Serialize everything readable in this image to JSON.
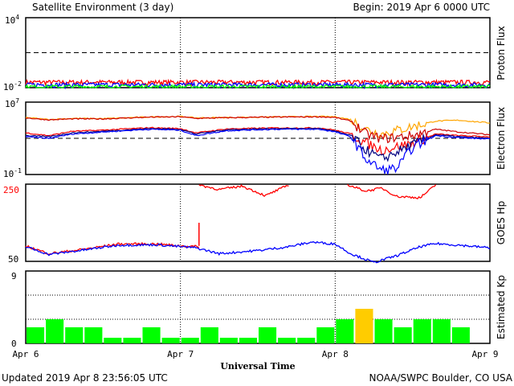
{
  "header": {
    "title": "Satellite Environment (3 day)",
    "begin": "Begin:  2019 Apr 6 0000 UTC"
  },
  "footer": {
    "updated": "Updated 2019 Apr  8 23:56:05 UTC",
    "credit": "NOAA/SWPC Boulder, CO USA"
  },
  "x_axis": {
    "title": "Universal Time",
    "ticks": [
      "Apr 6",
      "Apr 7",
      "Apr 8",
      "Apr 9"
    ]
  },
  "colors": {
    "red": "#ff0000",
    "blue": "#0000ff",
    "green": "#00ff00",
    "orange": "#ffa500",
    "darkred": "#cc0000",
    "navy": "#000080",
    "bar_green": "#00ff00",
    "bar_yellow": "#ffcc00"
  },
  "chart_data": [
    {
      "type": "line",
      "ylabel": "Proton Flux",
      "yscale": "log",
      "ylim": [
        0.01,
        10000
      ],
      "yticks": [
        {
          "base": "10",
          "exp": "4"
        },
        {
          "base": "10",
          "exp": "-2"
        }
      ],
      "xlim_days": [
        0,
        3
      ],
      "threshold": 10,
      "series": [
        {
          "color": "red",
          "level_start": 0.03,
          "level_end": 0.03
        },
        {
          "color": "blue",
          "level_start": 0.018,
          "level_end": 0.018
        },
        {
          "color": "green",
          "level_start": 0.012,
          "level_end": 0.012
        }
      ]
    },
    {
      "type": "line",
      "ylabel": "Electron Flux",
      "yscale": "log",
      "ylim": [
        0.1,
        10000000
      ],
      "yticks": [
        {
          "base": "10",
          "exp": "7"
        },
        {
          "base": "10",
          "exp": "-1"
        }
      ],
      "threshold": 1000,
      "series": [
        {
          "color": "orange",
          "x": [
            0,
            0.15,
            0.3,
            0.5,
            0.8,
            1.0,
            1.1,
            1.3,
            1.6,
            1.9,
            2.0,
            2.1,
            2.2,
            2.3,
            2.5,
            2.65,
            2.8,
            3.0
          ],
          "y": [
            200000,
            120000,
            160000,
            150000,
            230000,
            260000,
            180000,
            200000,
            230000,
            260000,
            240000,
            120000,
            10000,
            3000,
            20000,
            80000,
            100000,
            50000
          ]
        },
        {
          "color": "darkred",
          "x": [
            0,
            0.15,
            0.3,
            0.5,
            0.8,
            1.0,
            1.1,
            1.3,
            1.6,
            1.9,
            2.0,
            2.1,
            2.2,
            2.3,
            2.5,
            2.65,
            2.8,
            3.0
          ],
          "y": [
            180000,
            110000,
            140000,
            140000,
            220000,
            240000,
            160000,
            190000,
            220000,
            240000,
            200000,
            80000,
            3000,
            900,
            2000,
            10000,
            5000,
            2500
          ]
        },
        {
          "color": "red",
          "x": [
            0,
            0.15,
            0.3,
            0.5,
            0.8,
            1.0,
            1.1,
            1.3,
            1.6,
            1.9,
            2.0,
            2.1,
            2.2,
            2.3,
            2.5,
            2.65,
            2.8,
            3.0
          ],
          "y": [
            4000,
            2000,
            6000,
            8000,
            15000,
            12000,
            4000,
            11000,
            14000,
            14000,
            8000,
            3000,
            300,
            50,
            300,
            3000,
            2000,
            1500
          ]
        },
        {
          "color": "navy",
          "x": [
            0,
            0.15,
            0.3,
            0.5,
            0.8,
            1.0,
            1.1,
            1.3,
            1.6,
            1.9,
            2.0,
            2.1,
            2.2,
            2.3,
            2.5,
            2.65,
            2.8,
            3.0
          ],
          "y": [
            2000,
            1500,
            4000,
            6000,
            12000,
            10000,
            3000,
            9000,
            12000,
            12000,
            6000,
            2000,
            50,
            5,
            200,
            2500,
            1500,
            1000
          ]
        },
        {
          "color": "blue",
          "x": [
            0,
            0.15,
            0.3,
            0.5,
            0.8,
            1.0,
            1.1,
            1.3,
            1.6,
            1.9,
            2.0,
            2.1,
            2.2,
            2.3,
            2.4,
            2.5,
            2.65,
            2.8,
            3.0
          ],
          "y": [
            1500,
            1000,
            3000,
            5000,
            10000,
            8000,
            2000,
            7000,
            10000,
            10000,
            5000,
            1500,
            5,
            0.3,
            0.5,
            100,
            2000,
            1200,
            800
          ]
        }
      ]
    },
    {
      "type": "line",
      "ylabel": "GOES Hp",
      "ylim": [
        50,
        250
      ],
      "yticks": [
        "250",
        "50"
      ],
      "series": [
        {
          "color": "red",
          "x": [
            0,
            0.15,
            0.35,
            0.6,
            0.85,
            1.0,
            1.12
          ],
          "y": [
            90,
            70,
            80,
            95,
            95,
            90,
            88
          ],
          "spike": {
            "x": 1.12,
            "y": 150
          }
        },
        {
          "color": "red",
          "x": [
            1.12,
            1.25,
            1.4,
            1.55,
            1.7
          ],
          "y": [
            248,
            236,
            245,
            220,
            248
          ]
        },
        {
          "color": "red",
          "x": [
            2.08,
            2.2,
            2.3,
            2.4,
            2.55,
            2.65
          ],
          "y": [
            248,
            232,
            240,
            218,
            215,
            248
          ]
        },
        {
          "color": "blue",
          "x": [
            0,
            0.15,
            0.35,
            0.6,
            0.85,
            1.0,
            1.1,
            1.25,
            1.5,
            1.7,
            1.85,
            2.0,
            2.1,
            2.25,
            2.4,
            2.55,
            2.65,
            2.8,
            3.0
          ],
          "y": [
            88,
            68,
            78,
            92,
            93,
            88,
            85,
            70,
            78,
            88,
            100,
            95,
            70,
            47,
            65,
            88,
            96,
            92,
            85
          ]
        }
      ]
    },
    {
      "type": "bar",
      "ylabel": "Estimated Kp",
      "ylim": [
        0,
        9
      ],
      "yticks": [
        "9",
        "0"
      ],
      "bar_width_hours": 3,
      "values": [
        2,
        3,
        2,
        2,
        0.7,
        0.7,
        2,
        0.7,
        0.7,
        2,
        0.7,
        0.7,
        2,
        0.7,
        0.7,
        2,
        3,
        4.3,
        3,
        2,
        3,
        3,
        2,
        0
      ],
      "highlight": {
        "index": 17,
        "color": "bar_yellow"
      }
    }
  ]
}
